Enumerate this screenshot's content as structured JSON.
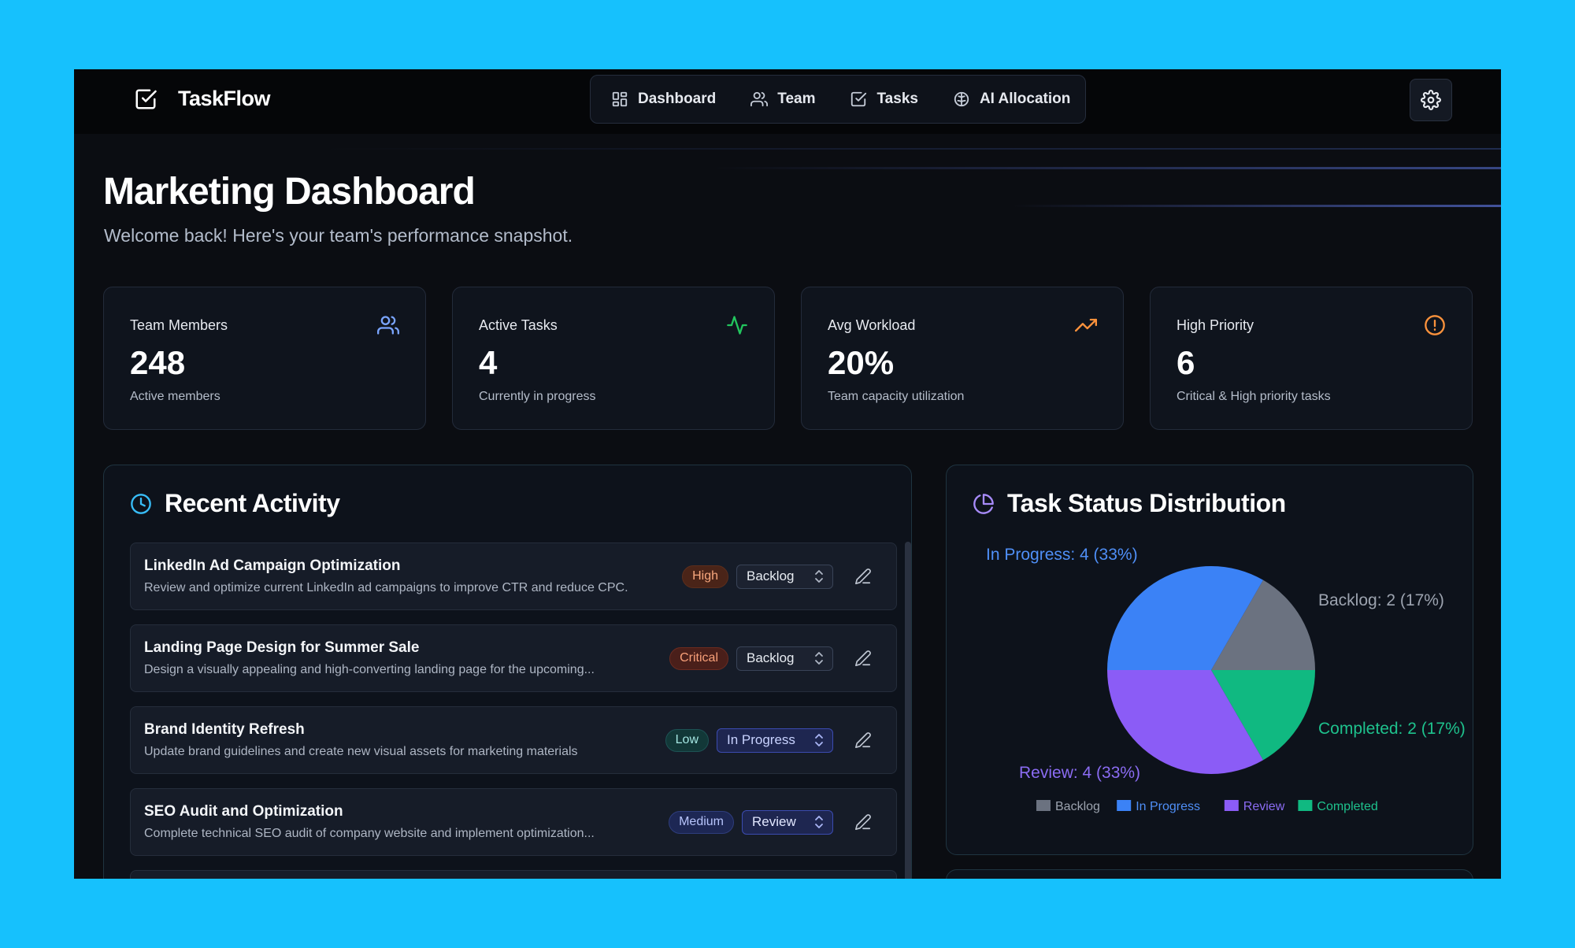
{
  "app": {
    "name": "TaskFlow"
  },
  "nav": [
    {
      "label": "Dashboard",
      "icon": "dashboard-icon"
    },
    {
      "label": "Team",
      "icon": "users-icon"
    },
    {
      "label": "Tasks",
      "icon": "check-square-icon"
    },
    {
      "label": "AI Allocation",
      "icon": "brain-icon"
    }
  ],
  "header": {
    "title": "Marketing Dashboard",
    "subtitle": "Welcome back! Here's your team's performance snapshot."
  },
  "stats": [
    {
      "label": "Team Members",
      "value": "248",
      "note": "Active members",
      "icon": "users-icon",
      "color": "#7aa5ff"
    },
    {
      "label": "Active Tasks",
      "value": "4",
      "note": "Currently in progress",
      "icon": "activity-icon",
      "color": "#22c55e"
    },
    {
      "label": "Avg Workload",
      "value": "20%",
      "note": "Team capacity utilization",
      "icon": "trending-up-icon",
      "color": "#fb923c"
    },
    {
      "label": "High Priority",
      "value": "6",
      "note": "Critical & High priority tasks",
      "icon": "alert-circle-icon",
      "color": "#fb923c"
    }
  ],
  "activity": {
    "title": "Recent Activity",
    "icon": "clock-icon",
    "items": [
      {
        "title": "LinkedIn Ad Campaign Optimization",
        "description": "Review and optimize current LinkedIn ad campaigns to improve CTR and reduce CPC.",
        "priority": "High",
        "status": "Backlog"
      },
      {
        "title": "Landing Page Design for Summer Sale",
        "description": "Design a visually appealing and high-converting landing page for the upcoming...",
        "priority": "Critical",
        "status": "Backlog"
      },
      {
        "title": "Brand Identity Refresh",
        "description": "Update brand guidelines and create new visual assets for marketing materials",
        "priority": "Low",
        "status": "In Progress"
      },
      {
        "title": "SEO Audit and Optimization",
        "description": "Complete technical SEO audit of company website and implement optimization...",
        "priority": "Medium",
        "status": "Review"
      }
    ]
  },
  "task_status": {
    "title": "Task Status Distribution",
    "icon": "pie-chart-icon"
  },
  "chart_data": {
    "type": "pie",
    "title": "Task Status Distribution",
    "categories": [
      "Backlog",
      "In Progress",
      "Review",
      "Completed"
    ],
    "values": [
      2,
      4,
      4,
      2
    ],
    "labels": [
      "Backlog: 2 (17%)",
      "In Progress: 4 (33%)",
      "Review: 4 (33%)",
      "Completed: 2 (17%)"
    ],
    "colors": [
      "#6b7280",
      "#3b82f6",
      "#8b5cf6",
      "#10b981"
    ],
    "legend": "bottom"
  }
}
